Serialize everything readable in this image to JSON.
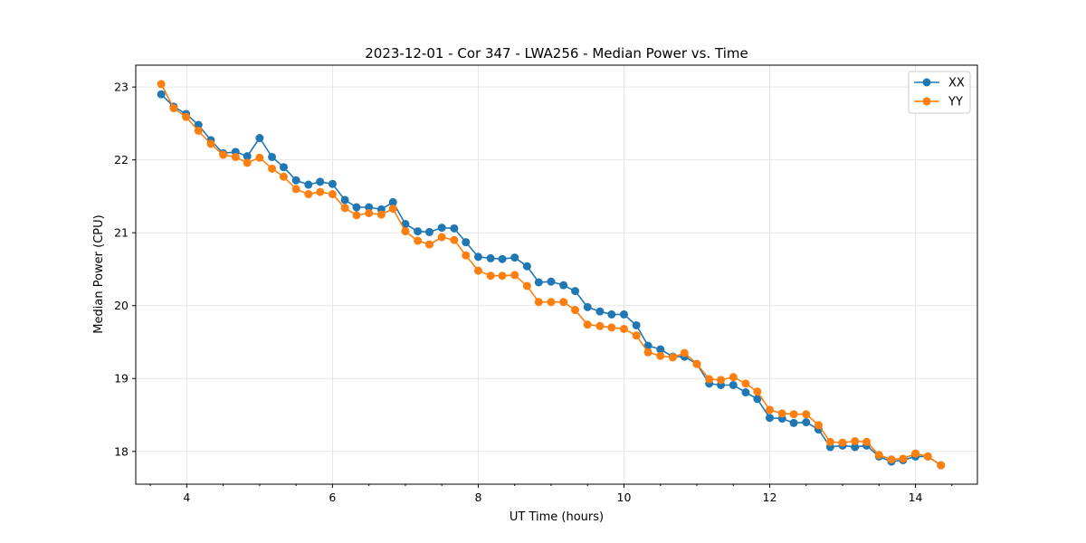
{
  "chart_data": {
    "type": "line",
    "title": "2023-12-01 - Cor 347 - LWA256 - Median Power vs. Time",
    "xlabel": "UT Time (hours)",
    "ylabel": "Median Power (CPU)",
    "xlim": [
      3.3,
      14.85
    ],
    "ylim": [
      17.55,
      23.3
    ],
    "xticks": [
      4,
      6,
      8,
      10,
      12,
      14
    ],
    "xtick_labels": [
      "4",
      "6",
      "8",
      "10",
      "12",
      "14"
    ],
    "yticks": [
      18,
      19,
      20,
      21,
      22,
      23
    ],
    "ytick_labels": [
      "18",
      "19",
      "20",
      "21",
      "22",
      "23"
    ],
    "grid": true,
    "legend_position": "top-right",
    "x": [
      3.65,
      3.82,
      3.99,
      4.16,
      4.33,
      4.5,
      4.67,
      4.83,
      5.0,
      5.17,
      5.33,
      5.5,
      5.67,
      5.83,
      6.0,
      6.17,
      6.33,
      6.5,
      6.67,
      6.83,
      7.0,
      7.17,
      7.33,
      7.5,
      7.67,
      7.83,
      8.0,
      8.17,
      8.33,
      8.5,
      8.67,
      8.83,
      9.0,
      9.17,
      9.33,
      9.5,
      9.67,
      9.83,
      10.0,
      10.17,
      10.33,
      10.5,
      10.67,
      10.83,
      11.0,
      11.17,
      11.33,
      11.5,
      11.67,
      11.83,
      12.0,
      12.17,
      12.33,
      12.5,
      12.67,
      12.83,
      13.0,
      13.17,
      13.33,
      13.5,
      13.67,
      13.83,
      14.0,
      14.17,
      14.35
    ],
    "series": [
      {
        "name": "XX",
        "color": "#1f77b4",
        "values": [
          22.9,
          22.73,
          22.63,
          22.48,
          22.27,
          22.09,
          22.11,
          22.05,
          22.3,
          22.04,
          21.9,
          21.72,
          21.66,
          21.7,
          21.67,
          21.45,
          21.35,
          21.35,
          21.32,
          21.42,
          21.12,
          21.02,
          21.01,
          21.07,
          21.06,
          20.87,
          20.67,
          20.65,
          20.64,
          20.66,
          20.54,
          20.32,
          20.33,
          20.28,
          20.2,
          19.98,
          19.92,
          19.88,
          19.88,
          19.73,
          19.45,
          19.4,
          19.3,
          19.3,
          19.2,
          18.93,
          18.91,
          18.91,
          18.81,
          18.72,
          18.46,
          18.45,
          18.39,
          18.4,
          18.3,
          18.06,
          18.08,
          18.06,
          18.08,
          17.93,
          17.86,
          17.88,
          17.93,
          17.93,
          17.81
        ]
      },
      {
        "name": "YY",
        "color": "#ff7f0e",
        "values": [
          23.04,
          22.71,
          22.59,
          22.4,
          22.22,
          22.07,
          22.04,
          21.96,
          22.03,
          21.88,
          21.77,
          21.6,
          21.53,
          21.56,
          21.53,
          21.34,
          21.24,
          21.27,
          21.25,
          21.33,
          21.02,
          20.89,
          20.84,
          20.94,
          20.9,
          20.69,
          20.48,
          20.41,
          20.41,
          20.42,
          20.27,
          20.05,
          20.05,
          20.05,
          19.94,
          19.74,
          19.72,
          19.7,
          19.68,
          19.59,
          19.36,
          19.31,
          19.29,
          19.35,
          19.2,
          18.99,
          18.98,
          19.02,
          18.93,
          18.82,
          18.57,
          18.52,
          18.51,
          18.51,
          18.36,
          18.13,
          18.12,
          18.14,
          18.13,
          17.95,
          17.89,
          17.9,
          17.97,
          17.93,
          17.81
        ]
      }
    ]
  }
}
